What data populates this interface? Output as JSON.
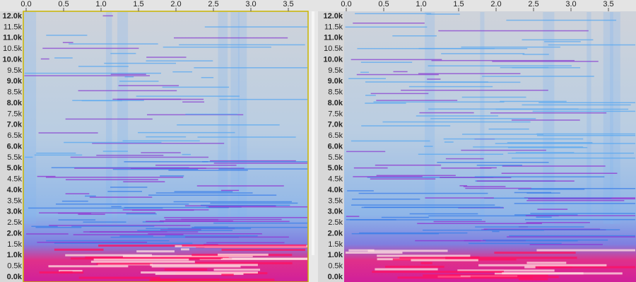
{
  "left_panel": {
    "time_ruler": [
      "0.0",
      "0.5",
      "1.0",
      "1.5",
      "2.0",
      "2.5",
      "3.0",
      "3.5"
    ],
    "frequency_labels": [
      "12.0k",
      "11.5k",
      "11.0k",
      "10.5k",
      "10.0k",
      "9.5k",
      "9.0k",
      "8.5k",
      "8.0k",
      "7.5k",
      "7.0k",
      "6.5k",
      "6.0k",
      "5.5k",
      "5.0k",
      "4.5k",
      "4.0k",
      "3.5k",
      "3.0k",
      "2.5k",
      "2.0k",
      "1.5k",
      "1.0k",
      "0.5k",
      "0.0k"
    ]
  },
  "right_panel": {
    "time_ruler": [
      "0.0",
      "0.5",
      "1.0",
      "1.5",
      "2.0",
      "2.5",
      "3.0",
      "3.5"
    ],
    "frequency_labels": [
      "12.0k",
      "11.5k",
      "11.0k",
      "10.5k",
      "10.0k",
      "9.5k",
      "9.0k",
      "8.5k",
      "8.0k",
      "7.5k",
      "7.0k",
      "6.5k",
      "6.0k",
      "5.5k",
      "5.0k",
      "4.5k",
      "4.0k",
      "3.5k",
      "3.0k",
      "2.5k",
      "2.0k",
      "1.5k",
      "1.0k",
      "0.5k",
      "0.0k"
    ]
  }
}
